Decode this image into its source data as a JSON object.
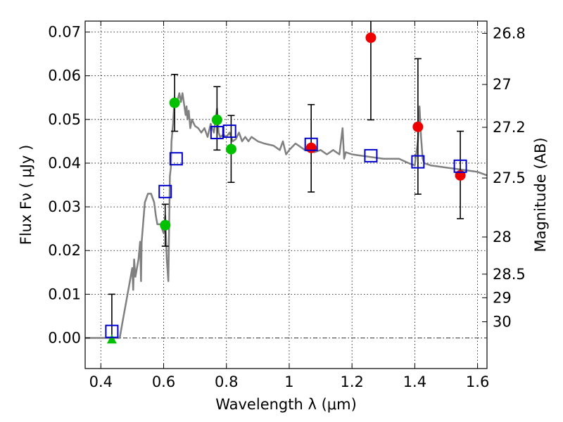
{
  "chart_data": {
    "type": "scatter",
    "xlabel": "Wavelength  λ (μm)",
    "ylabel": "Flux  Fν  ( μJy )",
    "y2label": "Magnitude (AB)",
    "xlim": [
      0.35,
      1.63
    ],
    "ylim": [
      -0.007,
      0.0725
    ],
    "grid": true,
    "x_ticks": [
      {
        "v": 0.4,
        "label": "0.4"
      },
      {
        "v": 0.6,
        "label": "0.6"
      },
      {
        "v": 0.8,
        "label": "0.8"
      },
      {
        "v": 1.0,
        "label": "1"
      },
      {
        "v": 1.2,
        "label": "1.2"
      },
      {
        "v": 1.4,
        "label": "1.4"
      },
      {
        "v": 1.6,
        "label": "1.6"
      }
    ],
    "y_ticks": [
      {
        "v": 0.0,
        "label": "0.00"
      },
      {
        "v": 0.01,
        "label": "0.01"
      },
      {
        "v": 0.02,
        "label": "0.02"
      },
      {
        "v": 0.03,
        "label": "0.03"
      },
      {
        "v": 0.04,
        "label": "0.04"
      },
      {
        "v": 0.05,
        "label": "0.05"
      },
      {
        "v": 0.06,
        "label": "0.06"
      },
      {
        "v": 0.07,
        "label": "0.07"
      }
    ],
    "y2_ticks": [
      {
        "mag": "26.8",
        "flux": 0.0697
      },
      {
        "mag": "27",
        "flux": 0.058
      },
      {
        "mag": "27.2",
        "flux": 0.0482
      },
      {
        "mag": "27.5",
        "flux": 0.0366
      },
      {
        "mag": "28",
        "flux": 0.0231
      },
      {
        "mag": "28.5",
        "flux": 0.0146
      },
      {
        "mag": "29",
        "flux": 0.0092
      },
      {
        "mag": "30",
        "flux": 0.0037
      }
    ],
    "colors": {
      "model": "#808080",
      "model_points": "#0000cc",
      "optical": "#00c000",
      "nir": "#ee0000",
      "errorbars": "#000000"
    },
    "series": [
      {
        "kind": "model_sed",
        "x": [
          0.35,
          0.46,
          0.47,
          0.48,
          0.49,
          0.5,
          0.503,
          0.506,
          0.51,
          0.52,
          0.525,
          0.528,
          0.53,
          0.54,
          0.55,
          0.56,
          0.57,
          0.575,
          0.58,
          0.59,
          0.6,
          0.605,
          0.61,
          0.615,
          0.62,
          0.623,
          0.625,
          0.63,
          0.635,
          0.64,
          0.65,
          0.655,
          0.66,
          0.67,
          0.673,
          0.676,
          0.68,
          0.685,
          0.69,
          0.7,
          0.71,
          0.72,
          0.73,
          0.74,
          0.75,
          0.76,
          0.77,
          0.775,
          0.78,
          0.79,
          0.8,
          0.81,
          0.82,
          0.83,
          0.84,
          0.85,
          0.86,
          0.87,
          0.88,
          0.9,
          0.92,
          0.95,
          0.97,
          0.98,
          0.99,
          1.0,
          1.02,
          1.05,
          1.08,
          1.1,
          1.12,
          1.14,
          1.16,
          1.17,
          1.175,
          1.18,
          1.2,
          1.25,
          1.3,
          1.35,
          1.38,
          1.4,
          1.41,
          1.415,
          1.42,
          1.425,
          1.43,
          1.45,
          1.5,
          1.55,
          1.6,
          1.63
        ],
        "y": [
          0.0,
          0.0,
          0.004,
          0.008,
          0.012,
          0.016,
          0.011,
          0.018,
          0.014,
          0.018,
          0.022,
          0.013,
          0.022,
          0.031,
          0.033,
          0.033,
          0.031,
          0.028,
          0.026,
          0.026,
          0.024,
          0.028,
          0.018,
          0.013,
          0.037,
          0.039,
          0.045,
          0.049,
          0.055,
          0.053,
          0.056,
          0.054,
          0.056,
          0.051,
          0.053,
          0.05,
          0.052,
          0.048,
          0.05,
          0.0485,
          0.048,
          0.047,
          0.048,
          0.046,
          0.049,
          0.047,
          0.0525,
          0.047,
          0.046,
          0.0465,
          0.046,
          0.047,
          0.045,
          0.0455,
          0.047,
          0.045,
          0.046,
          0.045,
          0.046,
          0.045,
          0.0445,
          0.044,
          0.043,
          0.045,
          0.042,
          0.043,
          0.0445,
          0.043,
          0.0425,
          0.043,
          0.042,
          0.043,
          0.042,
          0.048,
          0.041,
          0.0425,
          0.042,
          0.0415,
          0.041,
          0.041,
          0.04,
          0.0395,
          0.0452,
          0.053,
          0.046,
          0.041,
          0.04,
          0.0395,
          0.039,
          0.0385,
          0.038,
          0.0372
        ]
      },
      {
        "kind": "model_photometry",
        "marker": "open-square",
        "x": [
          0.435,
          0.605,
          0.64,
          0.77,
          0.81,
          1.07,
          1.26,
          1.41,
          1.545
        ],
        "y": [
          0.0015,
          0.0335,
          0.041,
          0.047,
          0.0473,
          0.0443,
          0.0417,
          0.0403,
          0.0393
        ]
      },
      {
        "kind": "observed_optical",
        "marker": "filled-circle",
        "x": [
          0.605,
          0.635,
          0.77,
          0.815
        ],
        "y": [
          0.0258,
          0.0538,
          0.0499,
          0.0432
        ],
        "err_low": [
          0.0048,
          0.0065,
          0.0069,
          0.0076
        ],
        "err_high": [
          0.0048,
          0.0065,
          0.0076,
          0.0077
        ]
      },
      {
        "kind": "observed_upper_limit",
        "marker": "filled-triangle",
        "x": [
          0.435
        ],
        "y": [
          -0.0003
        ],
        "err_low": [
          0.0
        ],
        "err_high": [
          0.0103
        ]
      },
      {
        "kind": "observed_nir",
        "marker": "filled-circle",
        "x": [
          1.07,
          1.26,
          1.41,
          1.545
        ],
        "y": [
          0.0435,
          0.0687,
          0.0483,
          0.0372
        ],
        "err_low": [
          0.0101,
          0.0188,
          0.0154,
          0.0099
        ],
        "err_high": [
          0.0099,
          0.0063,
          0.0156,
          0.0101
        ]
      }
    ]
  }
}
